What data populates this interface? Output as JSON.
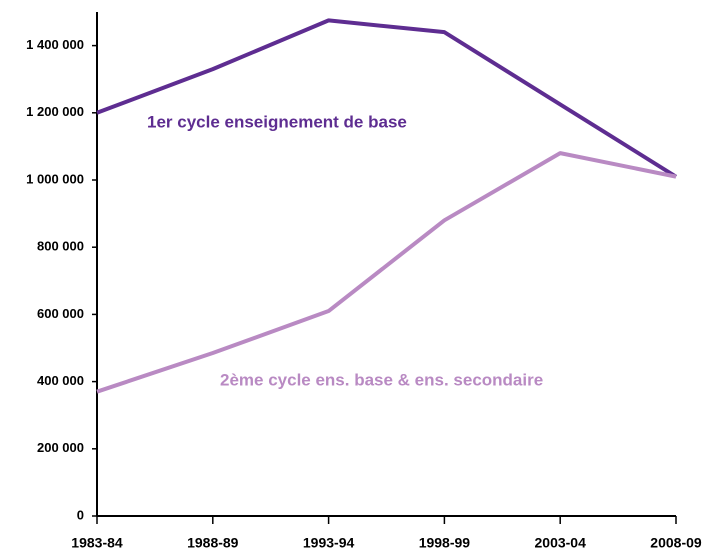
{
  "chart_data": {
    "type": "line",
    "categories": [
      "1983-84",
      "1988-89",
      "1993-94",
      "1998-99",
      "2003-04",
      "2008-09"
    ],
    "series": [
      {
        "name": "1er cycle enseignement de base",
        "color": "#5e2d91",
        "values": [
          1200000,
          1330000,
          1475000,
          1440000,
          1225000,
          1010000
        ]
      },
      {
        "name": "2ème cycle ens. base & ens. secondaire",
        "color": "#b98ac3",
        "values": [
          370000,
          485000,
          610000,
          880000,
          1080000,
          1010000
        ]
      }
    ],
    "ylim": [
      0,
      1500000
    ],
    "yticks": [
      0,
      {
        "value": 200000,
        "label": "200 000"
      },
      {
        "value": 400000,
        "label": "400 000"
      },
      {
        "value": 600000,
        "label": "600 000"
      },
      {
        "value": 800000,
        "label": "800 000"
      },
      {
        "value": 1000000,
        "label": "1 000 000"
      },
      {
        "value": 1200000,
        "label": "1 200 000"
      },
      {
        "value": 1400000,
        "label": "1 400 000"
      }
    ],
    "grid": false
  }
}
